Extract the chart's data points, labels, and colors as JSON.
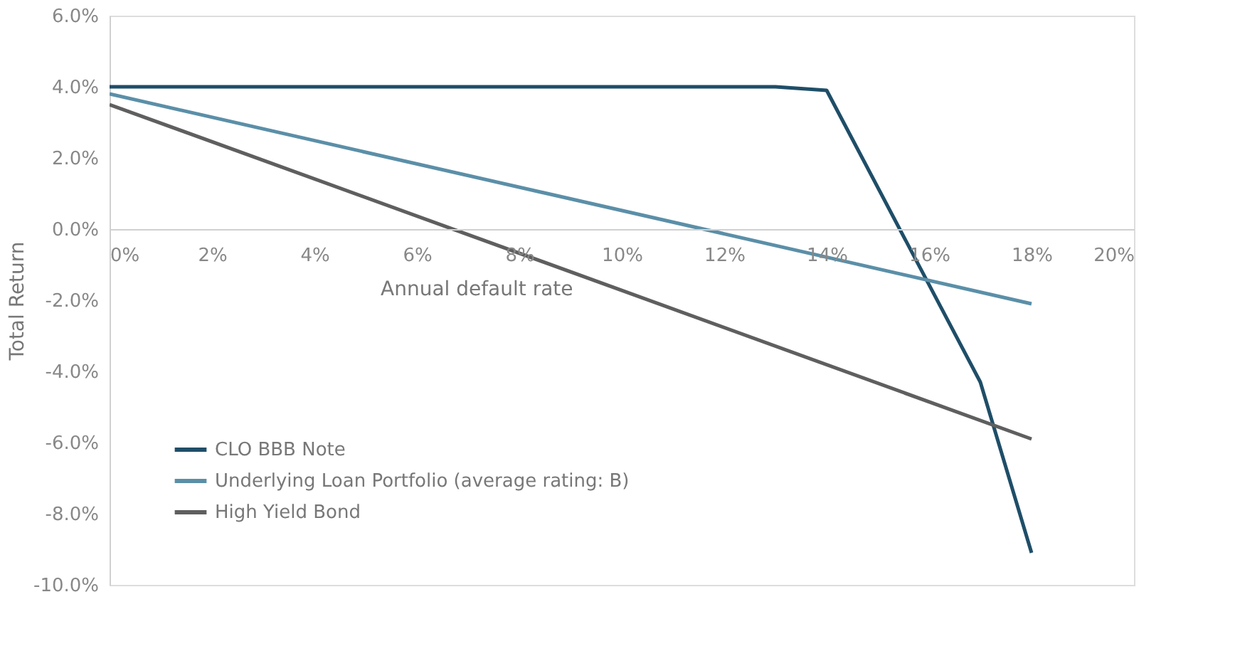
{
  "chart_data": {
    "type": "line",
    "xlabel": "Annual default rate",
    "ylabel": "Total Return",
    "xlim": [
      0,
      20
    ],
    "ylim": [
      -10,
      6
    ],
    "xticks": [
      {
        "value": 0,
        "label": "0%"
      },
      {
        "value": 2,
        "label": "2%"
      },
      {
        "value": 4,
        "label": "4%"
      },
      {
        "value": 6,
        "label": "6%"
      },
      {
        "value": 8,
        "label": "8%"
      },
      {
        "value": 10,
        "label": "10%"
      },
      {
        "value": 12,
        "label": "12%"
      },
      {
        "value": 14,
        "label": "14%"
      },
      {
        "value": 16,
        "label": "16%"
      },
      {
        "value": 18,
        "label": "18%"
      },
      {
        "value": 20,
        "label": "20%"
      }
    ],
    "yticks": [
      {
        "value": -10,
        "label": "-10.0%"
      },
      {
        "value": -8,
        "label": "-8.0%"
      },
      {
        "value": -6,
        "label": "-6.0%"
      },
      {
        "value": -4,
        "label": "-4.0%"
      },
      {
        "value": -2,
        "label": "-2.0%"
      },
      {
        "value": 0,
        "label": "0.0%"
      },
      {
        "value": 2,
        "label": "2.0%"
      },
      {
        "value": 4,
        "label": "4.0%"
      },
      {
        "value": 6,
        "label": "6.0%"
      }
    ],
    "grid": false,
    "legend": "bottom left",
    "marker": "none",
    "line_style": "solid",
    "series": [
      {
        "name": "CLO BBB Note",
        "color": "#1f4e68",
        "x": [
          0,
          13,
          14,
          17,
          18
        ],
        "values": [
          4.0,
          4.0,
          3.9,
          -4.3,
          -9.1
        ]
      },
      {
        "name": "Underlying Loan Portfolio (average rating: B)",
        "color": "#5b8fa8",
        "x": [
          0,
          18
        ],
        "values": [
          3.8,
          -2.1
        ]
      },
      {
        "name": "High Yield Bond",
        "color": "#5f5f5f",
        "x": [
          0,
          18
        ],
        "values": [
          3.5,
          -5.9
        ]
      }
    ]
  }
}
